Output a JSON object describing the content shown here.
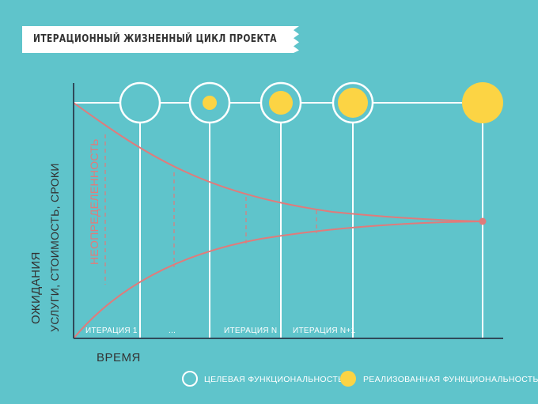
{
  "title": "ИТЕРАЦИОННЫЙ ЖИЗНЕННЫЙ ЦИКЛ ПРОЕКТА",
  "y_axis": {
    "line1": "ОЖИДАНИЯ",
    "line2": "УСЛУГИ, СТОИМОСТЬ, СРОКИ"
  },
  "x_axis": {
    "label": "ВРЕМЯ"
  },
  "uncertainty_label": "НЕОПРЕДЕЛЕННОСТЬ",
  "iterations": [
    {
      "label": "ИТЕРАЦИЯ 1"
    },
    {
      "label": "..."
    },
    {
      "label": "ИТЕРАЦИЯ N"
    },
    {
      "label": "ИТЕРАЦИЯ N+1"
    }
  ],
  "legend": {
    "target": "ЦЕЛЕВАЯ ФУНКЦИОНАЛЬНОСТЬ",
    "realized": "РЕАЛИЗОВАННАЯ ФУНКЦИОНАЛЬНОСТЬ"
  },
  "colors": {
    "background": "#5fc4cb",
    "curve": "#e07b7b",
    "fill": "#fcd444",
    "line": "#ffffff",
    "axis": "#2f4a5a",
    "text_dark": "#333333"
  }
}
